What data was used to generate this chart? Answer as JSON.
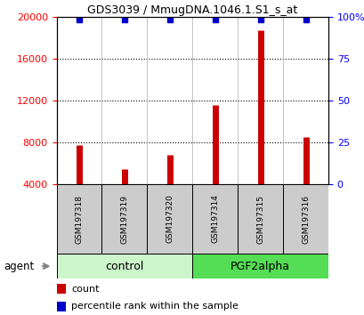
{
  "title": "GDS3039 / MmugDNA.1046.1.S1_s_at",
  "samples": [
    "GSM197318",
    "GSM197319",
    "GSM197320",
    "GSM197314",
    "GSM197315",
    "GSM197316"
  ],
  "counts": [
    7800,
    5500,
    6800,
    11600,
    18800,
    8500
  ],
  "percentiles": [
    99,
    99,
    99,
    99,
    99,
    99
  ],
  "groups": [
    "control",
    "control",
    "control",
    "PGF2alpha",
    "PGF2alpha",
    "PGF2alpha"
  ],
  "group_colors": {
    "control": "#ccf5cc",
    "PGF2alpha": "#55dd55"
  },
  "bar_color": "#cc0000",
  "dot_color": "#0000cc",
  "ylim_left": [
    0,
    20000
  ],
  "ylim_right": [
    0,
    100
  ],
  "yticks_left": [
    4000,
    8000,
    12000,
    16000,
    20000
  ],
  "yticks_right": [
    0,
    25,
    50,
    75,
    100
  ],
  "sample_box_color": "#cccccc",
  "legend_count_color": "#cc0000",
  "legend_pct_color": "#0000cc"
}
